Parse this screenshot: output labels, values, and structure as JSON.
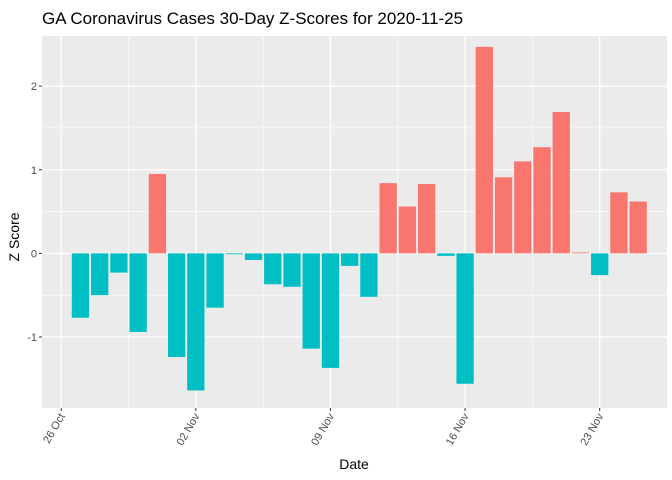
{
  "chart_data": {
    "type": "bar",
    "title": "GA Coronavirus Cases 30-Day Z-Scores for 2020-11-25",
    "xlabel": "Date",
    "ylabel": "Z Score",
    "ylim": [
      -1.85,
      2.6
    ],
    "yticks": [
      -1,
      0,
      1,
      2
    ],
    "xticks": [
      {
        "label": "26 Oct",
        "day": 0
      },
      {
        "label": "02 Nov",
        "day": 7
      },
      {
        "label": "09 Nov",
        "day": 14
      },
      {
        "label": "16 Nov",
        "day": 21
      },
      {
        "label": "23 Nov",
        "day": 28
      }
    ],
    "xlim": [
      -1.0,
      31.5
    ],
    "start_date": "2020-10-26",
    "colors": {
      "positive": "#F8766D",
      "negative": "#00BFC4",
      "panel": "#EBEBEB",
      "grid": "#FFFFFF"
    },
    "categories": [
      "2020-10-27",
      "2020-10-28",
      "2020-10-29",
      "2020-10-30",
      "2020-10-31",
      "2020-11-01",
      "2020-11-02",
      "2020-11-03",
      "2020-11-04",
      "2020-11-05",
      "2020-11-06",
      "2020-11-07",
      "2020-11-08",
      "2020-11-09",
      "2020-11-10",
      "2020-11-11",
      "2020-11-12",
      "2020-11-13",
      "2020-11-14",
      "2020-11-15",
      "2020-11-16",
      "2020-11-17",
      "2020-11-18",
      "2020-11-19",
      "2020-11-20",
      "2020-11-21",
      "2020-11-22",
      "2020-11-23",
      "2020-11-24",
      "2020-11-25"
    ],
    "values": [
      -0.77,
      -0.5,
      -0.23,
      -0.94,
      0.95,
      -1.24,
      -1.64,
      -0.65,
      -0.01,
      -0.08,
      -0.37,
      -0.4,
      -1.14,
      -1.37,
      -0.15,
      -0.52,
      0.84,
      0.56,
      0.83,
      -0.03,
      -1.56,
      2.47,
      0.91,
      1.1,
      1.27,
      1.69,
      0.01,
      -0.26,
      0.73,
      0.62
    ]
  }
}
